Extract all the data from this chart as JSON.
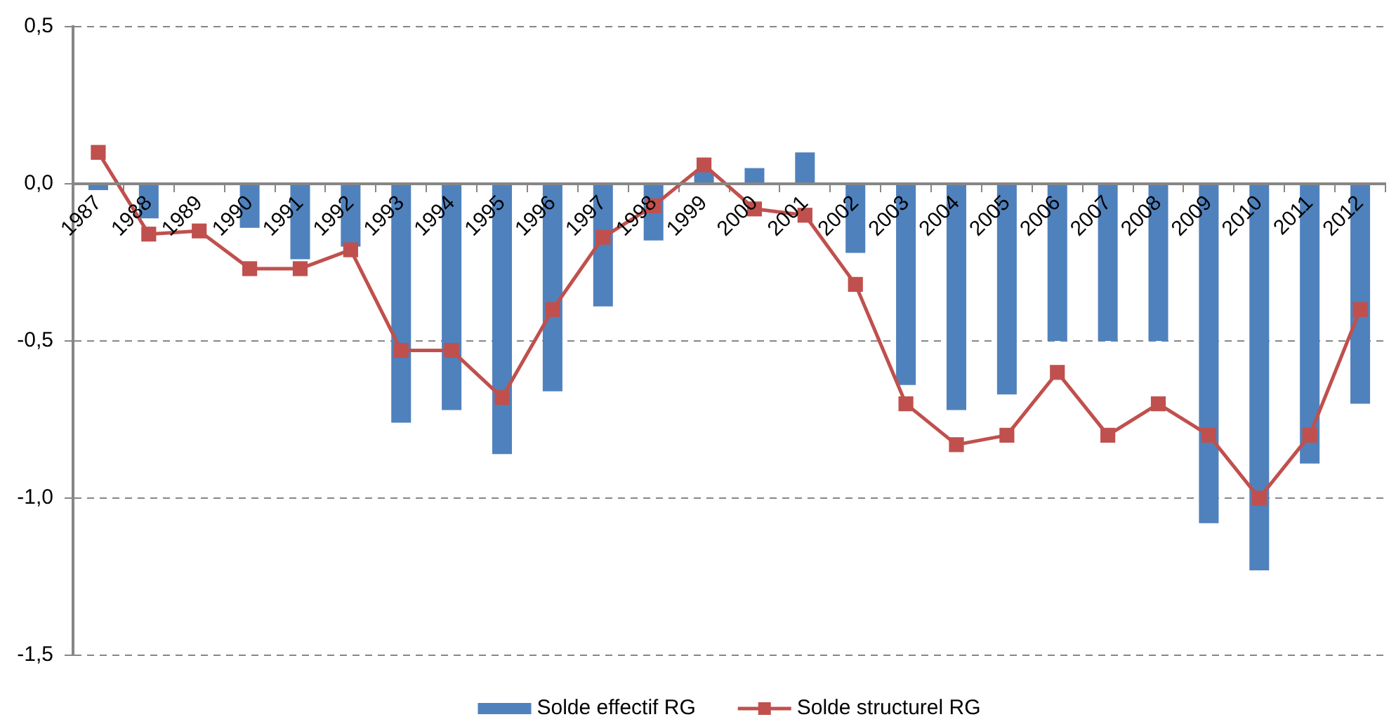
{
  "chart_data": {
    "type": "bar",
    "categories": [
      "1987",
      "1988",
      "1989",
      "1990",
      "1991",
      "1992",
      "1993",
      "1994",
      "1995",
      "1996",
      "1997",
      "1998",
      "1999",
      "2000",
      "2001",
      "2002",
      "2003",
      "2004",
      "2005",
      "2006",
      "2007",
      "2008",
      "2009",
      "2010",
      "2011",
      "2012"
    ],
    "series": [
      {
        "name": "Solde effectif RG",
        "color": "#4f81bd",
        "values": [
          -0.02,
          -0.11,
          0,
          -0.14,
          -0.24,
          -0.2,
          -0.76,
          -0.72,
          -0.86,
          -0.66,
          -0.39,
          -0.18,
          0.04,
          0.05,
          0.1,
          -0.22,
          -0.64,
          -0.72,
          -0.67,
          -0.5,
          -0.5,
          -0.5,
          -1.08,
          -1.23,
          -0.89,
          -0.7
        ]
      },
      {
        "name": "Solde structurel RG",
        "type": "line",
        "color": "#c0504d",
        "values": [
          0.1,
          -0.16,
          -0.15,
          -0.27,
          -0.27,
          -0.21,
          -0.53,
          -0.53,
          -0.68,
          -0.4,
          -0.17,
          -0.07,
          0.06,
          -0.08,
          -0.1,
          -0.32,
          -0.7,
          -0.83,
          -0.8,
          -0.6,
          -0.8,
          -0.7,
          -0.8,
          -1,
          -0.8,
          -0.4
        ]
      }
    ],
    "ylim": [
      -1.5,
      0.5
    ],
    "yticks": [
      {
        "value": 0.5,
        "label": "0,5"
      },
      {
        "value": 0,
        "label": "0,0"
      },
      {
        "value": -0.5,
        "label": "-0,5"
      },
      {
        "value": -1,
        "label": "-1,0"
      },
      {
        "value": -1.5,
        "label": "-1,5"
      }
    ],
    "grid": "y",
    "legend": "bottom",
    "marker": "square",
    "line_style": "solid"
  }
}
